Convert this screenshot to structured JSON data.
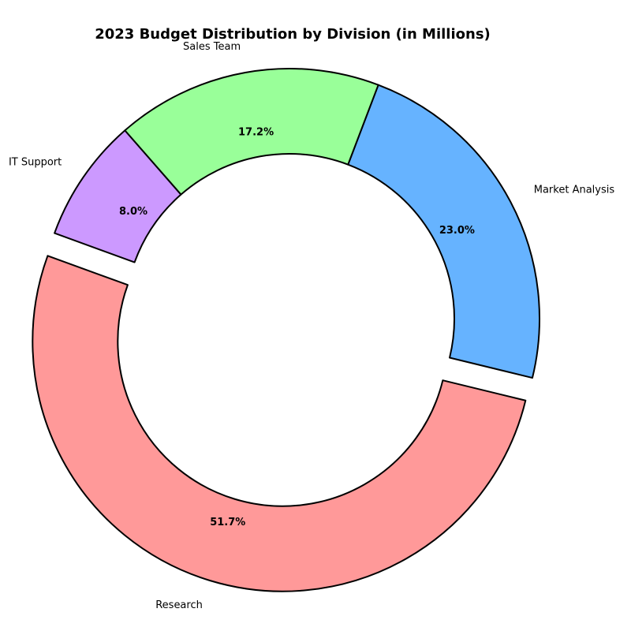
{
  "chart_data": {
    "type": "pie",
    "title": "2023 Budget Distribution by Division (in Millions)",
    "donut": true,
    "categories": [
      "Research",
      "Market Analysis",
      "Sales Team",
      "IT Support"
    ],
    "values": [
      51.7,
      23.0,
      17.2,
      8.0
    ],
    "percent_labels": [
      "51.7%",
      "23.0%",
      "17.2%",
      "8.0%"
    ],
    "colors": [
      "#ff9999",
      "#66b3ff",
      "#99ff99",
      "#cc99ff"
    ],
    "exploded": [
      "Research"
    ],
    "legend": "none"
  }
}
